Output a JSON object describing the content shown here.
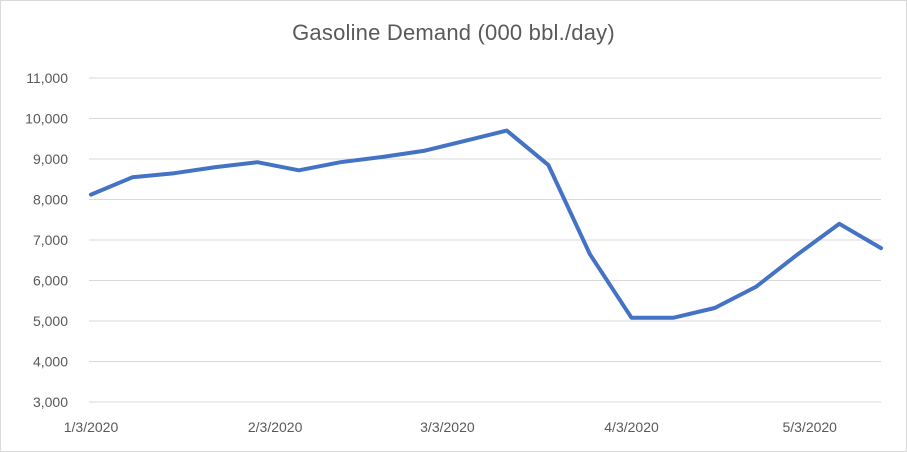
{
  "chart_data": {
    "type": "line",
    "title": "Gasoline Demand (000 bbl./day)",
    "xlabel": "",
    "ylabel": "",
    "ylim": [
      3000,
      11000
    ],
    "yticks": [
      3000,
      4000,
      5000,
      6000,
      7000,
      8000,
      9000,
      10000,
      11000
    ],
    "ytick_labels": [
      "3,000",
      "4,000",
      "5,000",
      "6,000",
      "7,000",
      "8,000",
      "9,000",
      "10,000",
      "11,000"
    ],
    "x_tick_labels": [
      "1/3/2020",
      "2/3/2020",
      "3/3/2020",
      "4/3/2020",
      "5/3/2020"
    ],
    "grid": true,
    "legend": "none",
    "color": "#4472c4",
    "x": [
      "1/3/2020",
      "1/10/2020",
      "1/17/2020",
      "1/24/2020",
      "1/31/2020",
      "2/7/2020",
      "2/14/2020",
      "2/21/2020",
      "2/28/2020",
      "3/6/2020",
      "3/13/2020",
      "3/20/2020",
      "3/27/2020",
      "4/3/2020",
      "4/10/2020",
      "4/17/2020",
      "4/24/2020",
      "5/1/2020",
      "5/8/2020",
      "5/15/2020"
    ],
    "values": [
      8120,
      8550,
      8650,
      8800,
      8920,
      8720,
      8920,
      9050,
      9200,
      9450,
      9700,
      8850,
      6650,
      5080,
      5080,
      5320,
      5850,
      6650,
      7400,
      6800
    ]
  }
}
